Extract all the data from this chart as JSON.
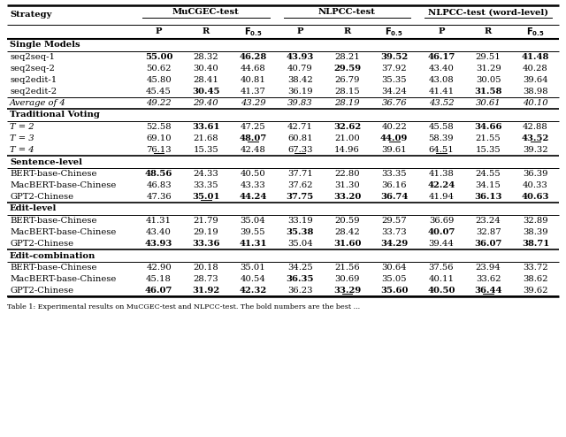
{
  "sections": [
    {
      "header": "Single Models",
      "rows": [
        {
          "label": "seq2seq-1",
          "italic": false,
          "vals": [
            "55.00",
            "28.32",
            "46.28",
            "43.93",
            "28.21",
            "39.52",
            "46.17",
            "29.51",
            "41.48"
          ],
          "bold": [
            1,
            0,
            1,
            1,
            0,
            1,
            1,
            0,
            1
          ],
          "ul": [
            0,
            0,
            0,
            0,
            0,
            0,
            0,
            0,
            0
          ]
        },
        {
          "label": "seq2seq-2",
          "italic": false,
          "vals": [
            "50.62",
            "30.40",
            "44.68",
            "40.79",
            "29.59",
            "37.92",
            "43.40",
            "31.29",
            "40.28"
          ],
          "bold": [
            0,
            0,
            0,
            0,
            1,
            0,
            0,
            0,
            0
          ],
          "ul": [
            0,
            0,
            0,
            0,
            0,
            0,
            0,
            0,
            0
          ]
        },
        {
          "label": "seq2edit-1",
          "italic": false,
          "vals": [
            "45.80",
            "28.41",
            "40.81",
            "38.42",
            "26.79",
            "35.35",
            "43.08",
            "30.05",
            "39.64"
          ],
          "bold": [
            0,
            0,
            0,
            0,
            0,
            0,
            0,
            0,
            0
          ],
          "ul": [
            0,
            0,
            0,
            0,
            0,
            0,
            0,
            0,
            0
          ]
        },
        {
          "label": "seq2edit-2",
          "italic": false,
          "vals": [
            "45.45",
            "30.45",
            "41.37",
            "36.19",
            "28.15",
            "34.24",
            "41.41",
            "31.58",
            "38.98"
          ],
          "bold": [
            0,
            1,
            0,
            0,
            0,
            0,
            0,
            1,
            0
          ],
          "ul": [
            0,
            0,
            0,
            0,
            0,
            0,
            0,
            0,
            0
          ]
        }
      ],
      "summary": {
        "label": "Average of 4",
        "vals": [
          "49.22",
          "29.40",
          "43.29",
          "39.83",
          "28.19",
          "36.76",
          "43.52",
          "30.61",
          "40.10"
        ]
      }
    },
    {
      "header": "Traditional Voting",
      "rows": [
        {
          "label": "T = 2",
          "italic": true,
          "vals": [
            "52.58",
            "33.61",
            "47.25",
            "42.71",
            "32.62",
            "40.22",
            "45.58",
            "34.66",
            "42.88"
          ],
          "bold": [
            0,
            1,
            0,
            0,
            1,
            0,
            0,
            1,
            0
          ],
          "ul": [
            0,
            0,
            0,
            0,
            0,
            0,
            0,
            0,
            0
          ]
        },
        {
          "label": "T = 3",
          "italic": true,
          "vals": [
            "69.10",
            "21.68",
            "48.07",
            "60.81",
            "21.00",
            "44.09",
            "58.39",
            "21.55",
            "43.52"
          ],
          "bold": [
            0,
            0,
            1,
            0,
            0,
            1,
            0,
            0,
            1
          ],
          "ul": [
            0,
            0,
            1,
            0,
            0,
            1,
            0,
            0,
            1
          ]
        },
        {
          "label": "T = 4",
          "italic": true,
          "vals": [
            "76.13",
            "15.35",
            "42.48",
            "67.33",
            "14.96",
            "39.61",
            "64.51",
            "15.35",
            "39.32"
          ],
          "bold": [
            0,
            0,
            0,
            0,
            0,
            0,
            0,
            0,
            0
          ],
          "ul": [
            1,
            0,
            0,
            1,
            0,
            0,
            1,
            0,
            0
          ]
        }
      ],
      "summary": null
    },
    {
      "header": "Sentence-level",
      "rows": [
        {
          "label": "BERT-base-Chinese",
          "italic": false,
          "vals": [
            "48.56",
            "24.33",
            "40.50",
            "37.71",
            "22.80",
            "33.35",
            "41.38",
            "24.55",
            "36.39"
          ],
          "bold": [
            1,
            0,
            0,
            0,
            0,
            0,
            0,
            0,
            0
          ],
          "ul": [
            0,
            0,
            0,
            0,
            0,
            0,
            0,
            0,
            0
          ]
        },
        {
          "label": "MacBERT-base-Chinese",
          "italic": false,
          "vals": [
            "46.83",
            "33.35",
            "43.33",
            "37.62",
            "31.30",
            "36.16",
            "42.24",
            "34.15",
            "40.33"
          ],
          "bold": [
            0,
            0,
            0,
            0,
            0,
            0,
            1,
            0,
            0
          ],
          "ul": [
            0,
            0,
            0,
            0,
            0,
            0,
            0,
            0,
            0
          ]
        },
        {
          "label": "GPT2-Chinese",
          "italic": false,
          "vals": [
            "47.36",
            "35.01",
            "44.24",
            "37.75",
            "33.20",
            "36.74",
            "41.94",
            "36.13",
            "40.63"
          ],
          "bold": [
            0,
            1,
            1,
            1,
            1,
            1,
            0,
            1,
            1
          ],
          "ul": [
            0,
            1,
            0,
            0,
            0,
            0,
            0,
            0,
            0
          ]
        }
      ],
      "summary": null
    },
    {
      "header": "Edit-level",
      "rows": [
        {
          "label": "BERT-base-Chinese",
          "italic": false,
          "vals": [
            "41.31",
            "21.79",
            "35.04",
            "33.19",
            "20.59",
            "29.57",
            "36.69",
            "23.24",
            "32.89"
          ],
          "bold": [
            0,
            0,
            0,
            0,
            0,
            0,
            0,
            0,
            0
          ],
          "ul": [
            0,
            0,
            0,
            0,
            0,
            0,
            0,
            0,
            0
          ]
        },
        {
          "label": "MacBERT-base-Chinese",
          "italic": false,
          "vals": [
            "43.40",
            "29.19",
            "39.55",
            "35.38",
            "28.42",
            "33.73",
            "40.07",
            "32.87",
            "38.39"
          ],
          "bold": [
            0,
            0,
            0,
            1,
            0,
            0,
            1,
            0,
            0
          ],
          "ul": [
            0,
            0,
            0,
            0,
            0,
            0,
            0,
            0,
            0
          ]
        },
        {
          "label": "GPT2-Chinese",
          "italic": false,
          "vals": [
            "43.93",
            "33.36",
            "41.31",
            "35.04",
            "31.60",
            "34.29",
            "39.44",
            "36.07",
            "38.71"
          ],
          "bold": [
            1,
            1,
            1,
            0,
            1,
            1,
            0,
            1,
            1
          ],
          "ul": [
            0,
            0,
            0,
            0,
            0,
            0,
            0,
            0,
            0
          ]
        }
      ],
      "summary": null
    },
    {
      "header": "Edit-combination",
      "rows": [
        {
          "label": "BERT-base-Chinese",
          "italic": false,
          "vals": [
            "42.90",
            "20.18",
            "35.01",
            "34.25",
            "21.56",
            "30.64",
            "37.56",
            "23.94",
            "33.72"
          ],
          "bold": [
            0,
            0,
            0,
            0,
            0,
            0,
            0,
            0,
            0
          ],
          "ul": [
            0,
            0,
            0,
            0,
            0,
            0,
            0,
            0,
            0
          ]
        },
        {
          "label": "MacBERT-base-Chinese",
          "italic": false,
          "vals": [
            "45.18",
            "28.73",
            "40.54",
            "36.35",
            "30.69",
            "35.05",
            "40.11",
            "33.62",
            "38.62"
          ],
          "bold": [
            0,
            0,
            0,
            1,
            0,
            0,
            0,
            0,
            0
          ],
          "ul": [
            0,
            0,
            0,
            0,
            0,
            0,
            0,
            0,
            0
          ]
        },
        {
          "label": "GPT2-Chinese",
          "italic": false,
          "vals": [
            "46.07",
            "31.92",
            "42.32",
            "36.23",
            "33.29",
            "35.60",
            "40.50",
            "36.44",
            "39.62"
          ],
          "bold": [
            1,
            1,
            1,
            0,
            1,
            1,
            1,
            1,
            0
          ],
          "ul": [
            0,
            0,
            0,
            0,
            1,
            0,
            0,
            1,
            0
          ]
        }
      ],
      "summary": null
    }
  ],
  "caption": "Table 1: Experimental results on MuCGEC-test and NLPCC-test. The bold numbers are the best ..."
}
